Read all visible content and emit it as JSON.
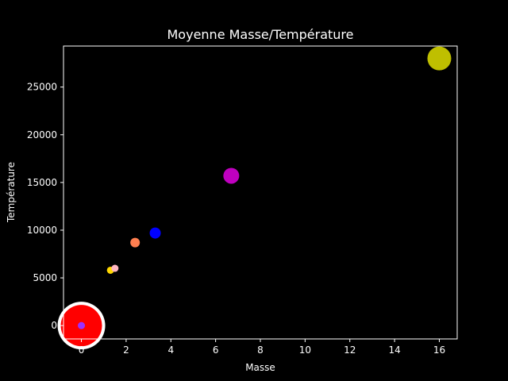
{
  "chart_data": {
    "type": "scatter",
    "title": "Moyenne Masse/Température",
    "xlabel": "Masse",
    "ylabel": "Température",
    "xlim": [
      -0.8,
      16.8
    ],
    "ylim": [
      -1400,
      29300
    ],
    "xticks": [
      0,
      2,
      4,
      6,
      8,
      10,
      12,
      14,
      16
    ],
    "yticks": [
      0,
      5000,
      10000,
      15000,
      20000,
      25000
    ],
    "grid": false,
    "background": "#000000",
    "foreground": "#ffffff",
    "points": [
      {
        "x": 0.0,
        "y": 0,
        "size": 60,
        "color": "#ffffff"
      },
      {
        "x": 0.0,
        "y": 0,
        "size": 52,
        "color": "#ff0000"
      },
      {
        "x": 0.0,
        "y": 0,
        "size": 9,
        "color": "#9b30ff"
      },
      {
        "x": 1.3,
        "y": 5800,
        "size": 9,
        "color": "#ffd700"
      },
      {
        "x": 1.5,
        "y": 6000,
        "size": 9,
        "color": "#ffb6c1"
      },
      {
        "x": 2.4,
        "y": 8700,
        "size": 12,
        "color": "#ff7f50"
      },
      {
        "x": 3.3,
        "y": 9700,
        "size": 14,
        "color": "#0000ff"
      },
      {
        "x": 6.7,
        "y": 15700,
        "size": 20,
        "color": "#bf00bf"
      },
      {
        "x": 16.0,
        "y": 28000,
        "size": 30,
        "color": "#bfbf00"
      }
    ]
  }
}
